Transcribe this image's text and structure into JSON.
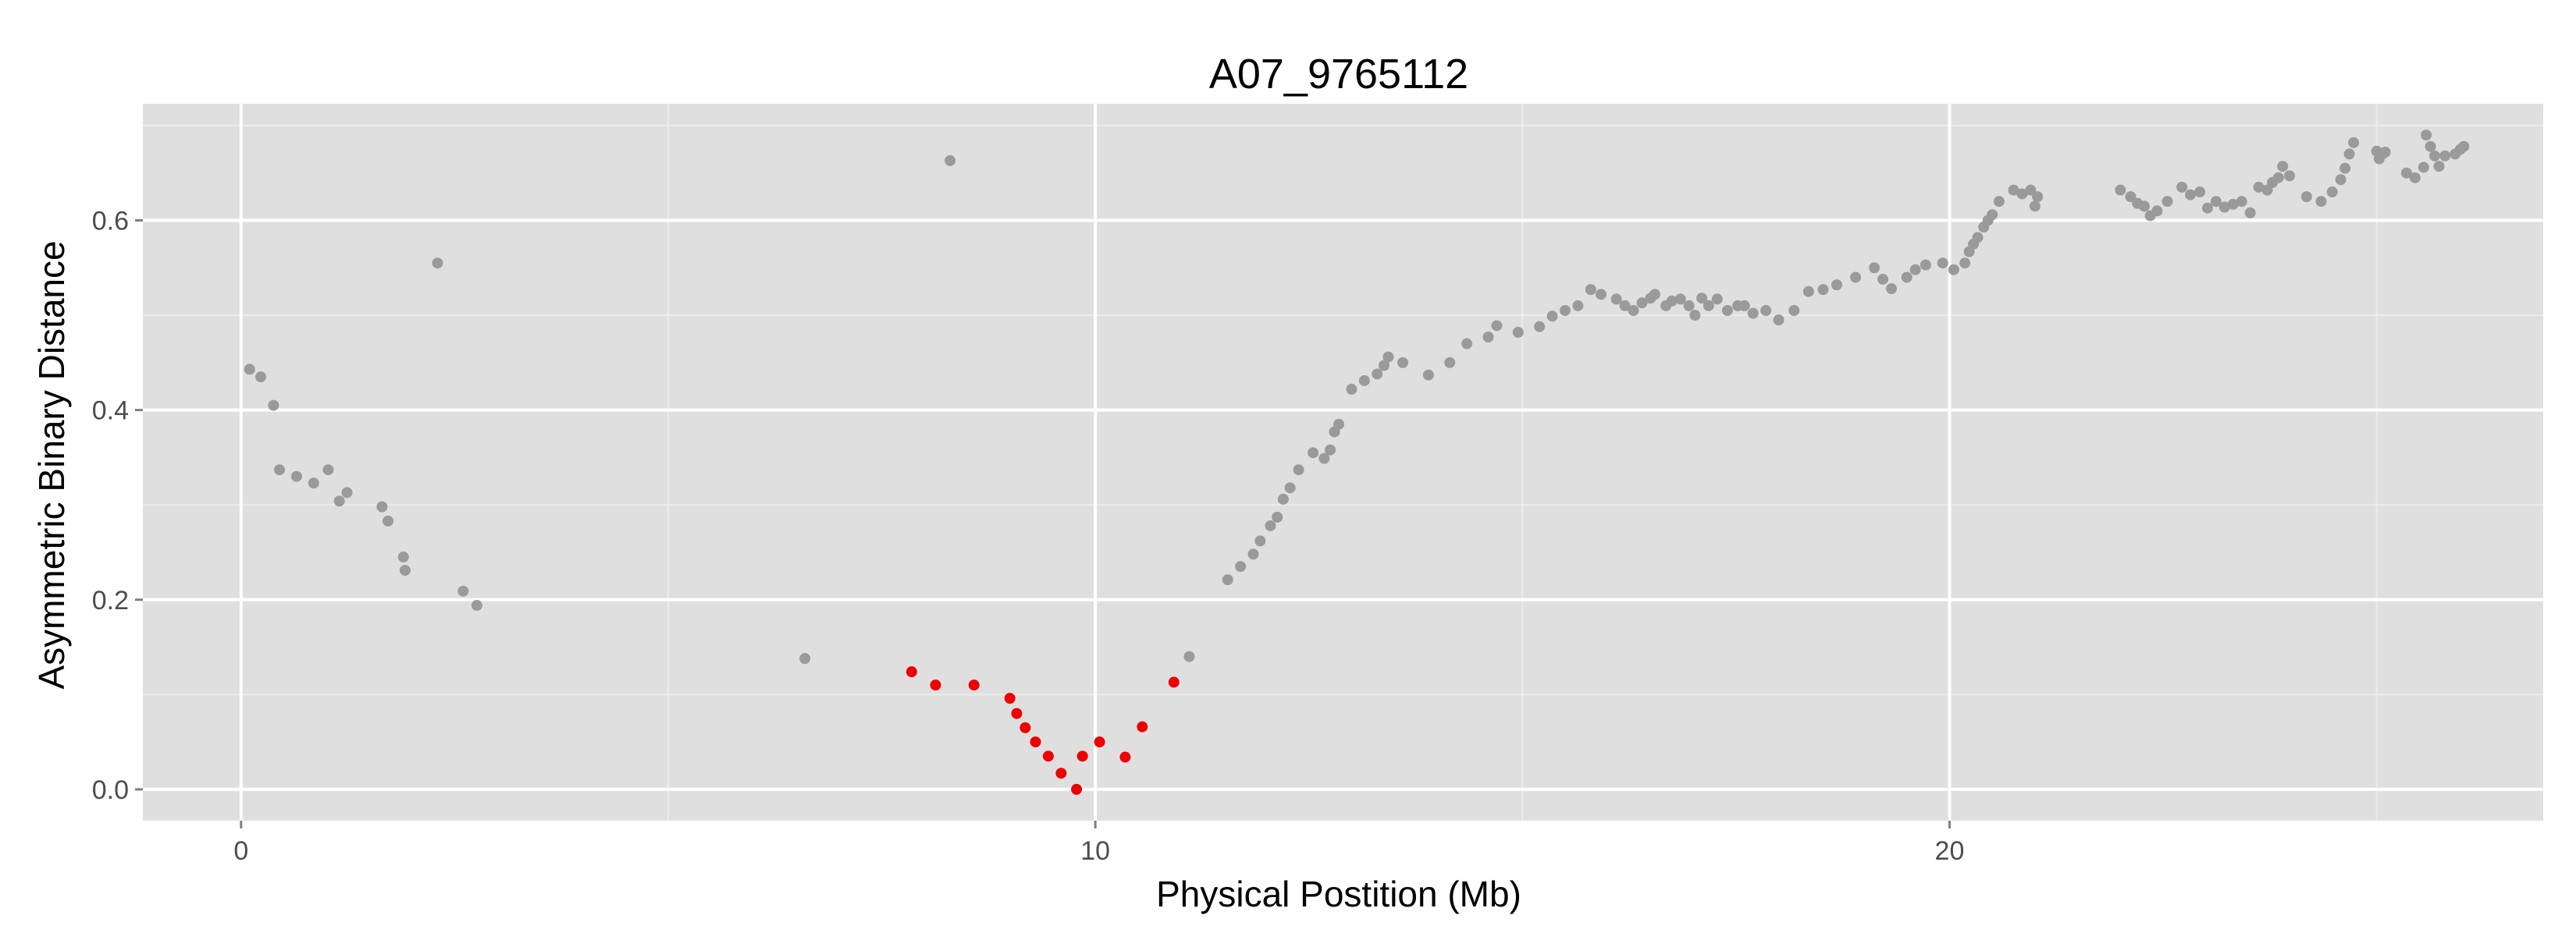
{
  "colors": {
    "panel_background": "#dfdfdf",
    "grid_major": "#ffffff",
    "grid_minor": "#ececec",
    "point_default": "#9a9a9a",
    "point_highlight": "#ee0000"
  },
  "chart_data": {
    "type": "scatter",
    "title": "A07_9765112",
    "xlabel": "Physical Postition (Mb)",
    "ylabel": "Asymmetric Binary Distance",
    "xlim": [
      -1.15,
      26.95
    ],
    "ylim": [
      -0.033,
      0.723
    ],
    "x_ticks": [
      0,
      10,
      20
    ],
    "y_ticks": [
      0.0,
      0.2,
      0.4,
      0.6
    ],
    "x_tick_labels": [
      "0",
      "10",
      "20"
    ],
    "y_tick_labels": [
      "0.0",
      "0.2",
      "0.4",
      "0.6"
    ],
    "grid": true,
    "legend": "none",
    "series": [
      {
        "color_key": "point_default",
        "points": [
          [
            0.1,
            0.443
          ],
          [
            0.23,
            0.435
          ],
          [
            0.38,
            0.405
          ],
          [
            0.45,
            0.337
          ],
          [
            0.65,
            0.33
          ],
          [
            0.85,
            0.323
          ],
          [
            1.02,
            0.337
          ],
          [
            1.15,
            0.304
          ],
          [
            1.24,
            0.313
          ],
          [
            1.65,
            0.298
          ],
          [
            1.72,
            0.283
          ],
          [
            1.9,
            0.245
          ],
          [
            1.92,
            0.231
          ],
          [
            2.3,
            0.555
          ],
          [
            2.6,
            0.209
          ],
          [
            2.76,
            0.194
          ],
          [
            6.6,
            0.138
          ],
          [
            8.3,
            0.663
          ],
          [
            11.1,
            0.14
          ],
          [
            11.55,
            0.221
          ],
          [
            11.7,
            0.235
          ],
          [
            11.85,
            0.248
          ],
          [
            11.93,
            0.262
          ],
          [
            12.05,
            0.278
          ],
          [
            12.13,
            0.287
          ],
          [
            12.2,
            0.306
          ],
          [
            12.28,
            0.318
          ],
          [
            12.38,
            0.337
          ],
          [
            12.55,
            0.355
          ],
          [
            12.68,
            0.349
          ],
          [
            12.75,
            0.358
          ],
          [
            12.8,
            0.377
          ],
          [
            12.85,
            0.385
          ],
          [
            13.0,
            0.422
          ],
          [
            13.15,
            0.431
          ],
          [
            13.3,
            0.438
          ],
          [
            13.38,
            0.447
          ],
          [
            13.43,
            0.456
          ],
          [
            13.6,
            0.45
          ],
          [
            13.9,
            0.437
          ],
          [
            14.15,
            0.45
          ],
          [
            14.35,
            0.47
          ],
          [
            14.6,
            0.477
          ],
          [
            14.7,
            0.489
          ],
          [
            14.95,
            0.482
          ],
          [
            15.2,
            0.488
          ],
          [
            15.35,
            0.499
          ],
          [
            15.5,
            0.505
          ],
          [
            15.65,
            0.51
          ],
          [
            15.8,
            0.527
          ],
          [
            15.92,
            0.522
          ],
          [
            16.1,
            0.517
          ],
          [
            16.2,
            0.51
          ],
          [
            16.3,
            0.505
          ],
          [
            16.4,
            0.513
          ],
          [
            16.5,
            0.518
          ],
          [
            16.55,
            0.522
          ],
          [
            16.68,
            0.51
          ],
          [
            16.75,
            0.515
          ],
          [
            16.85,
            0.517
          ],
          [
            16.95,
            0.51
          ],
          [
            17.02,
            0.5
          ],
          [
            17.1,
            0.518
          ],
          [
            17.18,
            0.51
          ],
          [
            17.28,
            0.517
          ],
          [
            17.4,
            0.505
          ],
          [
            17.52,
            0.51
          ],
          [
            17.6,
            0.51
          ],
          [
            17.7,
            0.502
          ],
          [
            17.85,
            0.505
          ],
          [
            18.0,
            0.495
          ],
          [
            18.18,
            0.505
          ],
          [
            18.35,
            0.525
          ],
          [
            18.52,
            0.527
          ],
          [
            18.68,
            0.532
          ],
          [
            18.9,
            0.54
          ],
          [
            19.12,
            0.55
          ],
          [
            19.22,
            0.538
          ],
          [
            19.32,
            0.528
          ],
          [
            19.5,
            0.54
          ],
          [
            19.6,
            0.548
          ],
          [
            19.72,
            0.553
          ],
          [
            19.92,
            0.555
          ],
          [
            20.05,
            0.548
          ],
          [
            20.18,
            0.555
          ],
          [
            20.23,
            0.567
          ],
          [
            20.28,
            0.575
          ],
          [
            20.33,
            0.582
          ],
          [
            20.4,
            0.593
          ],
          [
            20.45,
            0.6
          ],
          [
            20.5,
            0.606
          ],
          [
            20.58,
            0.62
          ],
          [
            20.75,
            0.632
          ],
          [
            20.85,
            0.628
          ],
          [
            20.95,
            0.632
          ],
          [
            21.0,
            0.615
          ],
          [
            21.03,
            0.625
          ],
          [
            22.0,
            0.632
          ],
          [
            22.12,
            0.625
          ],
          [
            22.2,
            0.618
          ],
          [
            22.28,
            0.615
          ],
          [
            22.35,
            0.605
          ],
          [
            22.43,
            0.61
          ],
          [
            22.55,
            0.62
          ],
          [
            22.72,
            0.635
          ],
          [
            22.82,
            0.627
          ],
          [
            22.93,
            0.63
          ],
          [
            23.02,
            0.613
          ],
          [
            23.12,
            0.62
          ],
          [
            23.22,
            0.614
          ],
          [
            23.32,
            0.617
          ],
          [
            23.42,
            0.62
          ],
          [
            23.52,
            0.608
          ],
          [
            23.62,
            0.635
          ],
          [
            23.72,
            0.632
          ],
          [
            23.78,
            0.64
          ],
          [
            23.85,
            0.645
          ],
          [
            23.9,
            0.657
          ],
          [
            23.98,
            0.647
          ],
          [
            24.18,
            0.625
          ],
          [
            24.35,
            0.62
          ],
          [
            24.48,
            0.63
          ],
          [
            24.58,
            0.643
          ],
          [
            24.63,
            0.655
          ],
          [
            24.68,
            0.67
          ],
          [
            24.73,
            0.682
          ],
          [
            25.0,
            0.673
          ],
          [
            25.03,
            0.665
          ],
          [
            25.07,
            0.67
          ],
          [
            25.1,
            0.672
          ],
          [
            25.35,
            0.65
          ],
          [
            25.45,
            0.645
          ],
          [
            25.55,
            0.656
          ],
          [
            25.58,
            0.69
          ],
          [
            25.63,
            0.678
          ],
          [
            25.68,
            0.668
          ],
          [
            25.73,
            0.657
          ],
          [
            25.8,
            0.668
          ],
          [
            25.92,
            0.67
          ],
          [
            25.98,
            0.675
          ],
          [
            26.02,
            0.678
          ]
        ]
      },
      {
        "color_key": "point_highlight",
        "points": [
          [
            7.85,
            0.124
          ],
          [
            8.13,
            0.11
          ],
          [
            8.58,
            0.11
          ],
          [
            9.0,
            0.096
          ],
          [
            9.08,
            0.08
          ],
          [
            9.18,
            0.065
          ],
          [
            9.3,
            0.05
          ],
          [
            9.45,
            0.035
          ],
          [
            9.6,
            0.017
          ],
          [
            9.78,
            0.0
          ],
          [
            9.85,
            0.035
          ],
          [
            10.05,
            0.05
          ],
          [
            10.35,
            0.034
          ],
          [
            10.55,
            0.066
          ],
          [
            10.92,
            0.113
          ]
        ]
      }
    ]
  }
}
